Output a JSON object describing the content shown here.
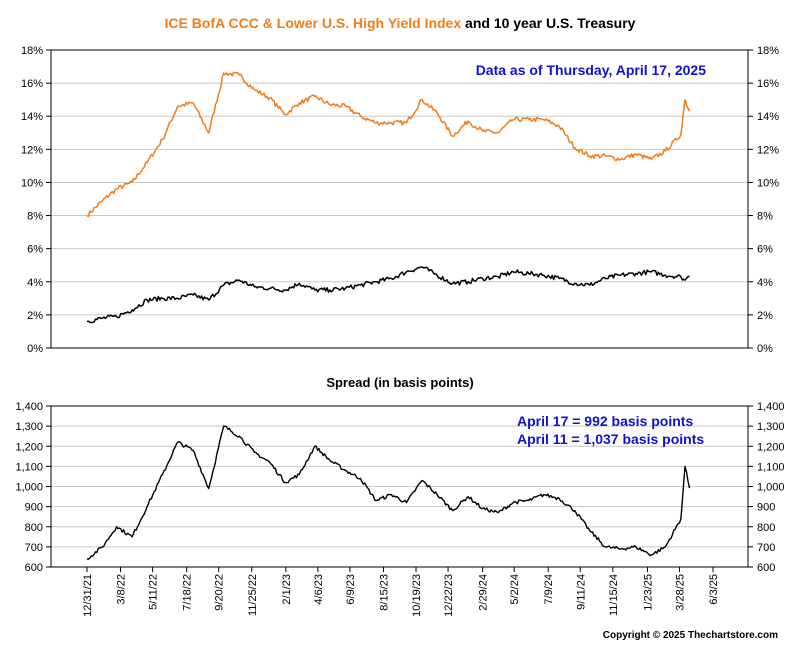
{
  "colors": {
    "ccc_series": "#f07d1a",
    "treasury_series": "#000000",
    "spread_series": "#000000",
    "annotation": "#1010d0",
    "grid": "#c8c8c8"
  },
  "header": {
    "title_part1": "ICE BofA CCC & Lower U.S. High Yield Index",
    "title_part2": " and 10 year U.S. Treasury"
  },
  "top_chart": {
    "note": "Data as of Thursday, April 17, 2025"
  },
  "bottom_chart": {
    "subtitle": "Spread (in basis points)",
    "note_line1": "April 17 = 992 basis points",
    "note_line2": "April 11 = 1,037 basis points"
  },
  "footer": {
    "copyright": "Copyright © 2025 Thechartstore.com"
  },
  "chart_data": [
    {
      "type": "line",
      "title": "ICE BofA CCC & Lower U.S. High Yield Index and 10 year U.S. Treasury",
      "ylim": [
        0,
        18
      ],
      "yticks": [
        "0%",
        "2%",
        "4%",
        "6%",
        "8%",
        "10%",
        "12%",
        "14%",
        "16%",
        "18%"
      ],
      "ytick_values": [
        0,
        2,
        4,
        6,
        8,
        10,
        12,
        14,
        16,
        18
      ],
      "y_axis_both_sides": true,
      "grid": true,
      "series": [
        {
          "x": [
            "12/31/21",
            "1/31/22",
            "2/28/22",
            "3/31/22",
            "4/30/22",
            "5/31/22",
            "6/30/22",
            "7/31/22",
            "8/31/22",
            "9/30/22",
            "10/31/22",
            "11/30/22",
            "12/31/22",
            "1/31/23",
            "2/28/23",
            "3/31/23",
            "4/30/23",
            "5/31/23",
            "6/30/23",
            "7/31/23",
            "8/31/23",
            "9/30/23",
            "10/31/23",
            "11/30/23",
            "12/31/23",
            "1/31/24",
            "2/29/24",
            "3/31/24",
            "4/30/24",
            "5/31/24",
            "6/30/24",
            "7/31/24",
            "8/31/24",
            "9/30/24",
            "10/31/24",
            "11/30/24",
            "12/31/24",
            "1/31/25",
            "2/28/25",
            "3/31/25",
            "4/8/25",
            "4/17/25"
          ],
          "values": [
            8.0,
            8.9,
            9.6,
            10.0,
            11.2,
            12.6,
            14.6,
            14.8,
            13.0,
            16.6,
            16.5,
            15.6,
            15.1,
            14.1,
            14.8,
            15.2,
            14.7,
            14.6,
            14.0,
            13.6,
            13.6,
            13.6,
            15.0,
            14.2,
            12.8,
            13.7,
            13.1,
            13.0,
            13.8,
            13.8,
            13.8,
            13.4,
            12.1,
            11.6,
            11.6,
            11.4,
            11.7,
            11.4,
            11.9,
            12.9,
            15.0,
            14.3
          ]
        },
        {
          "x": [
            "12/31/21",
            "1/31/22",
            "2/28/22",
            "3/31/22",
            "4/30/22",
            "5/31/22",
            "6/30/22",
            "7/31/22",
            "8/31/22",
            "9/30/22",
            "10/31/22",
            "11/30/22",
            "12/31/22",
            "1/31/23",
            "2/28/23",
            "3/31/23",
            "4/30/23",
            "5/31/23",
            "6/30/23",
            "7/31/23",
            "8/31/23",
            "9/30/23",
            "10/31/23",
            "11/30/23",
            "12/31/23",
            "1/31/24",
            "2/29/24",
            "3/31/24",
            "4/30/24",
            "5/31/24",
            "6/30/24",
            "7/31/24",
            "8/31/24",
            "9/30/24",
            "10/31/24",
            "11/30/24",
            "12/31/24",
            "1/31/25",
            "2/28/25",
            "3/31/25",
            "4/8/25",
            "4/17/25"
          ],
          "values": [
            1.6,
            1.8,
            1.9,
            2.3,
            2.9,
            3.0,
            3.0,
            3.2,
            2.9,
            3.8,
            4.1,
            3.7,
            3.6,
            3.5,
            3.9,
            3.5,
            3.5,
            3.6,
            3.8,
            4.0,
            4.2,
            4.6,
            4.9,
            4.4,
            3.9,
            4.0,
            4.2,
            4.3,
            4.6,
            4.5,
            4.4,
            4.2,
            3.9,
            3.8,
            4.2,
            4.4,
            4.5,
            4.6,
            4.4,
            4.3,
            4.1,
            4.35
          ]
        }
      ]
    },
    {
      "type": "line",
      "title": "Spread (in basis points)",
      "ylim": [
        600,
        1400
      ],
      "yticks": [
        "600",
        "700",
        "800",
        "900",
        "1,000",
        "1,100",
        "1,200",
        "1,300",
        "1,400"
      ],
      "ytick_values": [
        600,
        700,
        800,
        900,
        1000,
        1100,
        1200,
        1300,
        1400
      ],
      "y_axis_both_sides": true,
      "grid": true,
      "x_tick_labels": [
        "12/31/21",
        "3/8/22",
        "5/11/22",
        "7/18/22",
        "9/20/22",
        "11/25/22",
        "2/1/23",
        "4/6/23",
        "6/9/23",
        "8/15/23",
        "10/19/23",
        "12/22/23",
        "2/29/24",
        "5/2/24",
        "7/9/24",
        "9/11/24",
        "11/15/24",
        "1/23/25",
        "3/28/25",
        "6/3/25"
      ],
      "annotations": [
        "April 17 = 992 basis points",
        "April 11 = 1,037 basis points"
      ],
      "series": [
        {
          "x": [
            "12/31/21",
            "1/31/22",
            "2/28/22",
            "3/31/22",
            "4/30/22",
            "5/31/22",
            "6/30/22",
            "7/31/22",
            "8/31/22",
            "9/30/22",
            "10/31/22",
            "11/30/22",
            "12/31/22",
            "1/31/23",
            "2/28/23",
            "3/31/23",
            "4/30/23",
            "5/31/23",
            "6/30/23",
            "7/31/23",
            "8/31/23",
            "9/30/23",
            "10/31/23",
            "11/30/23",
            "12/31/23",
            "1/31/24",
            "2/29/24",
            "3/31/24",
            "4/30/24",
            "5/31/24",
            "6/30/24",
            "7/31/24",
            "8/31/24",
            "9/30/24",
            "10/31/24",
            "11/30/24",
            "12/31/24",
            "1/31/25",
            "2/28/25",
            "3/31/25",
            "4/8/25",
            "4/17/25"
          ],
          "values": [
            640,
            700,
            800,
            750,
            900,
            1060,
            1220,
            1180,
            990,
            1300,
            1250,
            1170,
            1120,
            1020,
            1060,
            1200,
            1130,
            1080,
            1040,
            930,
            960,
            920,
            1030,
            960,
            880,
            950,
            890,
            870,
            920,
            930,
            960,
            940,
            880,
            780,
            700,
            690,
            700,
            660,
            700,
            840,
            1100,
            992
          ]
        }
      ]
    }
  ]
}
